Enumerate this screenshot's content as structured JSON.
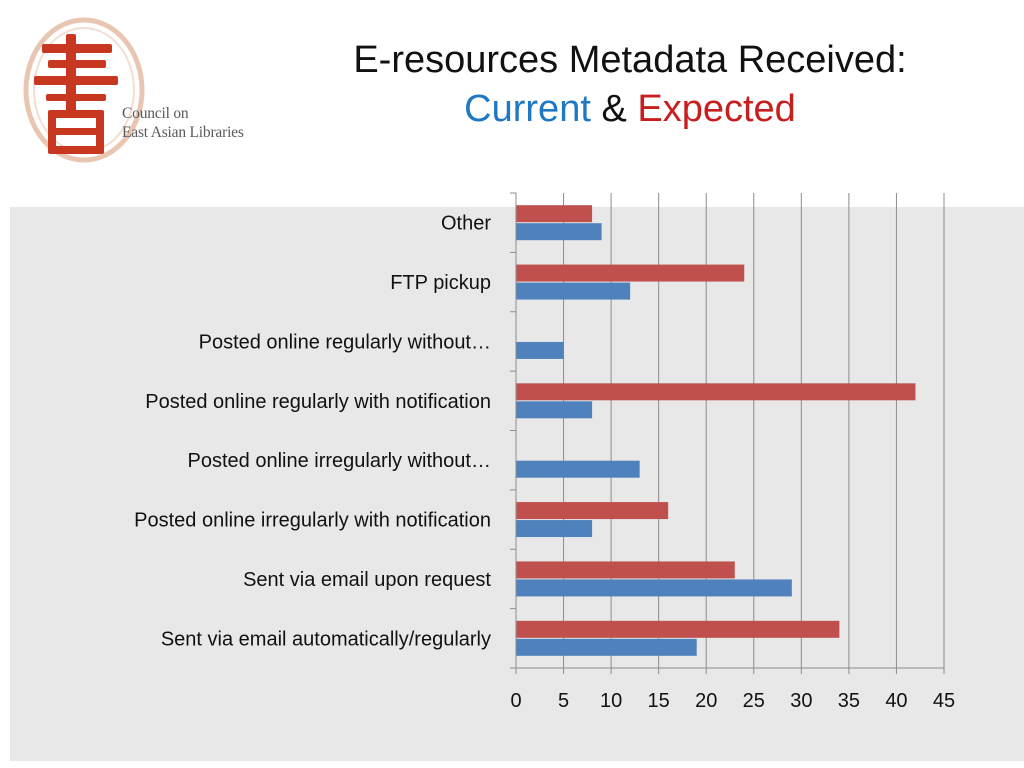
{
  "logo": {
    "org_line1": "Council on",
    "org_line2": "East Asian Libraries",
    "colors": {
      "red": "#c8371f",
      "ring": "#d9a58a"
    }
  },
  "header": {
    "title_line1": "E-resources Metadata Received:",
    "current_word": "Current",
    "amp": "&",
    "expected_word": "Expected",
    "colors": {
      "current": "#1f78c4",
      "expected": "#c81e1e"
    }
  },
  "chart_data": {
    "type": "bar",
    "orientation": "horizontal",
    "title": "",
    "xlabel": "",
    "ylabel": "",
    "categories": [
      "Other",
      "FTP pickup",
      "Posted online regularly without…",
      "Posted online regularly with notification",
      "Posted online irregularly without…",
      "Posted online irregularly with notification",
      "Sent via email upon request",
      "Sent via email automatically/regularly"
    ],
    "series": [
      {
        "color": "#c0504d",
        "values": [
          8,
          24,
          0,
          42,
          0,
          16,
          23,
          34
        ]
      },
      {
        "color": "#4f81bd",
        "values": [
          9,
          12,
          5,
          8,
          13,
          8,
          29,
          19
        ]
      }
    ],
    "xlim": [
      0,
      45
    ],
    "xticks": [
      0,
      5,
      10,
      15,
      20,
      25,
      30,
      35,
      40,
      45
    ],
    "grid": "vertical",
    "legend": "none"
  }
}
